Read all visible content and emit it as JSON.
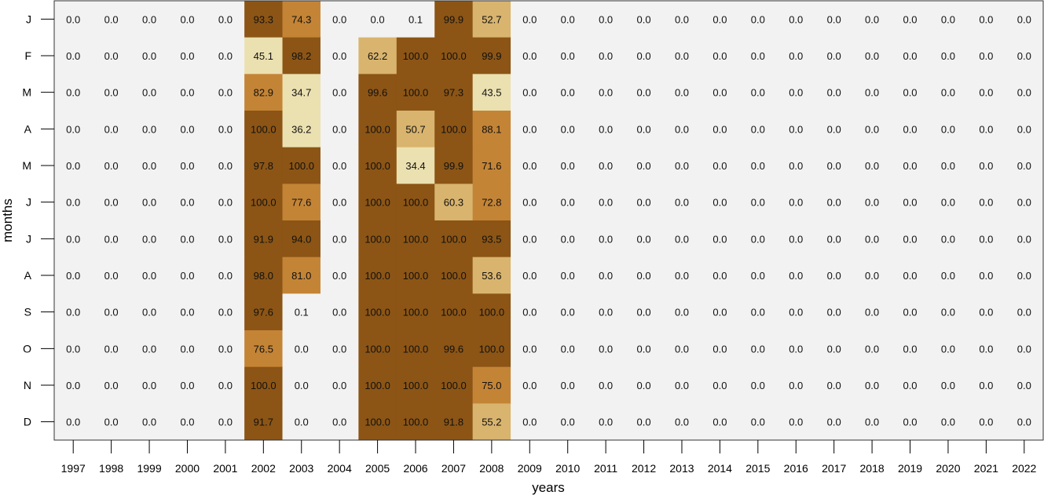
{
  "chart_data": {
    "type": "heatmap",
    "title": "",
    "xlabel": "years",
    "ylabel": "months",
    "x": [
      "1997",
      "1998",
      "1999",
      "2000",
      "2001",
      "2002",
      "2003",
      "2004",
      "2005",
      "2006",
      "2007",
      "2008",
      "2009",
      "2010",
      "2011",
      "2012",
      "2013",
      "2014",
      "2015",
      "2016",
      "2017",
      "2018",
      "2019",
      "2020",
      "2021",
      "2022"
    ],
    "y": [
      "J",
      "F",
      "M",
      "A",
      "M",
      "J",
      "J",
      "A",
      "S",
      "O",
      "N",
      "D"
    ],
    "values": [
      [
        0,
        0,
        0,
        0,
        0,
        93.3,
        74.3,
        0,
        0,
        0.1,
        99.9,
        52.7,
        0,
        0,
        0,
        0,
        0,
        0,
        0,
        0,
        0,
        0,
        0,
        0,
        0,
        0
      ],
      [
        0,
        0,
        0,
        0,
        0,
        45.1,
        98.2,
        0,
        62.2,
        100,
        100,
        99.9,
        0,
        0,
        0,
        0,
        0,
        0,
        0,
        0,
        0,
        0,
        0,
        0,
        0,
        0
      ],
      [
        0,
        0,
        0,
        0,
        0,
        82.9,
        34.7,
        0,
        99.6,
        100,
        97.3,
        43.5,
        0,
        0,
        0,
        0,
        0,
        0,
        0,
        0,
        0,
        0,
        0,
        0,
        0,
        0
      ],
      [
        0,
        0,
        0,
        0,
        0,
        100,
        36.2,
        0,
        100,
        50.7,
        100,
        88.1,
        0,
        0,
        0,
        0,
        0,
        0,
        0,
        0,
        0,
        0,
        0,
        0,
        0,
        0
      ],
      [
        0,
        0,
        0,
        0,
        0,
        97.8,
        100,
        0,
        100,
        34.4,
        99.9,
        71.6,
        0,
        0,
        0,
        0,
        0,
        0,
        0,
        0,
        0,
        0,
        0,
        0,
        0,
        0
      ],
      [
        0,
        0,
        0,
        0,
        0,
        100,
        77.6,
        0,
        100,
        100,
        60.3,
        72.8,
        0,
        0,
        0,
        0,
        0,
        0,
        0,
        0,
        0,
        0,
        0,
        0,
        0,
        0
      ],
      [
        0,
        0,
        0,
        0,
        0,
        91.9,
        94,
        0,
        100,
        100,
        100,
        93.5,
        0,
        0,
        0,
        0,
        0,
        0,
        0,
        0,
        0,
        0,
        0,
        0,
        0,
        0
      ],
      [
        0,
        0,
        0,
        0,
        0,
        98,
        81,
        0,
        100,
        100,
        100,
        53.6,
        0,
        0,
        0,
        0,
        0,
        0,
        0,
        0,
        0,
        0,
        0,
        0,
        0,
        0
      ],
      [
        0,
        0,
        0,
        0,
        0,
        97.6,
        0.1,
        0,
        100,
        100,
        100,
        100,
        0,
        0,
        0,
        0,
        0,
        0,
        0,
        0,
        0,
        0,
        0,
        0,
        0,
        0
      ],
      [
        0,
        0,
        0,
        0,
        0,
        76.5,
        0,
        0,
        100,
        100,
        99.6,
        100,
        0,
        0,
        0,
        0,
        0,
        0,
        0,
        0,
        0,
        0,
        0,
        0,
        0,
        0
      ],
      [
        0,
        0,
        0,
        0,
        0,
        100,
        0,
        0,
        100,
        100,
        100,
        75,
        0,
        0,
        0,
        0,
        0,
        0,
        0,
        0,
        0,
        0,
        0,
        0,
        0,
        0
      ],
      [
        0,
        0,
        0,
        0,
        0,
        91.7,
        0,
        0,
        100,
        100,
        91.8,
        55.2,
        0,
        0,
        0,
        0,
        0,
        0,
        0,
        0,
        0,
        0,
        0,
        0,
        0,
        0
      ]
    ],
    "value_format": "one decimal place",
    "zlim": [
      0,
      100
    ],
    "colors": {
      "empty": "#f2f2f2",
      "light": "#ebe0b0",
      "mid_light": "#d9b46e",
      "mid": "#c48436",
      "dark": "#8c5515"
    },
    "grid": false
  }
}
